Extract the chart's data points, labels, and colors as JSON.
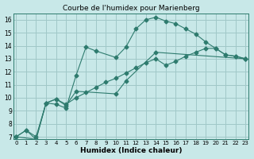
{
  "title": "Courbe de l'humidex pour Marienberg",
  "xlabel": "Humidex (Indice chaleur)",
  "ylabel": "",
  "bg_color": "#c8e8e8",
  "grid_color": "#a0c8c8",
  "line_color": "#2e7b6e",
  "xlim": [
    0,
    23
  ],
  "ylim": [
    7,
    16.5
  ],
  "xticks": [
    0,
    1,
    2,
    3,
    4,
    5,
    6,
    7,
    8,
    9,
    10,
    11,
    12,
    13,
    14,
    15,
    16,
    17,
    18,
    19,
    20,
    21,
    22,
    23
  ],
  "yticks": [
    7,
    8,
    9,
    10,
    11,
    12,
    13,
    14,
    15,
    16
  ],
  "line1_x": [
    0,
    1,
    2,
    3,
    4,
    5,
    6,
    7,
    8,
    9,
    10,
    11,
    12,
    13,
    14,
    15,
    16,
    17,
    18,
    19,
    20,
    21,
    22,
    23
  ],
  "line1_y": [
    7.0,
    7.5,
    6.8,
    9.6,
    9.5,
    9.2,
    11.7,
    13.9,
    13.6,
    null,
    13.1,
    13.9,
    15.3,
    16.0,
    16.2,
    15.9,
    15.7,
    15.3,
    14.9,
    14.3,
    13.8,
    13.3,
    13.2,
    13.0
  ],
  "line2_x": [
    0,
    2,
    3,
    4,
    5,
    6,
    7,
    8,
    9,
    10,
    11,
    12,
    13,
    14,
    15,
    16,
    17,
    18,
    19,
    20,
    21,
    22,
    23
  ],
  "line2_y": [
    7.0,
    6.8,
    9.6,
    9.9,
    9.4,
    10.5,
    null,
    null,
    null,
    10.3,
    11.3,
    null,
    null,
    13.5,
    null,
    null,
    null,
    null,
    null,
    null,
    null,
    null,
    13.0
  ],
  "line3_x": [
    0,
    1,
    2,
    3,
    4,
    5,
    6,
    7,
    8,
    9,
    10,
    11,
    12,
    13,
    14,
    15,
    16,
    17,
    18,
    19,
    20,
    21,
    22,
    23
  ],
  "line3_y": [
    7.0,
    7.5,
    7.0,
    9.6,
    9.9,
    9.5,
    10.0,
    10.4,
    10.8,
    11.2,
    11.5,
    11.9,
    12.3,
    12.7,
    13.0,
    12.5,
    12.8,
    13.2,
    13.5,
    13.8,
    13.8,
    13.3,
    13.2,
    13.0
  ]
}
